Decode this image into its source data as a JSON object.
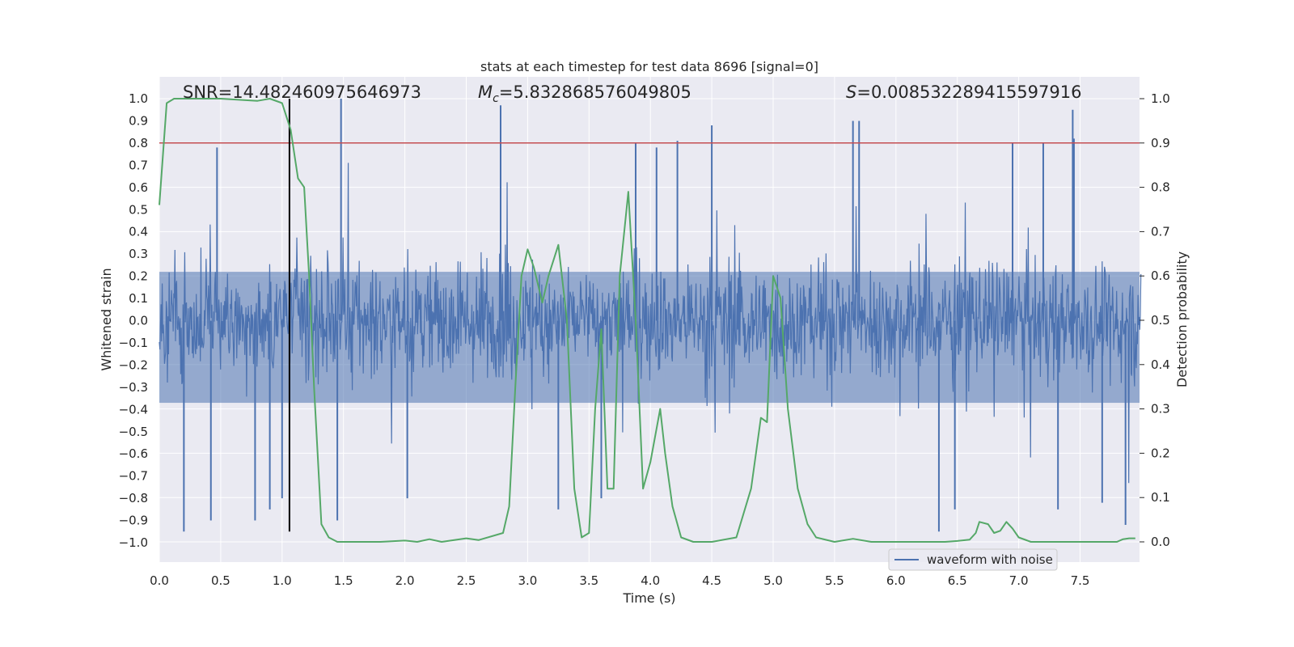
{
  "chart_data": {
    "type": "line",
    "title": "stats at each timestep for test data 8696 [signal=0]",
    "xlabel": "Time (s)",
    "ylabel": "Whitened strain",
    "y2label": "Detection probability",
    "xlim": [
      0.0,
      8.0
    ],
    "ylim": [
      -1.1,
      1.1
    ],
    "y2lim": [
      -0.05,
      1.05
    ],
    "xticks": [
      "0.0",
      "0.5",
      "1.0",
      "1.5",
      "2.0",
      "2.5",
      "3.0",
      "3.5",
      "4.0",
      "4.5",
      "5.0",
      "5.5",
      "6.0",
      "6.5",
      "7.0",
      "7.5"
    ],
    "yticks": [
      "1.0",
      "0.9",
      "0.8",
      "0.7",
      "0.6",
      "0.5",
      "0.4",
      "0.3",
      "0.2",
      "0.1",
      "0.0",
      "-0.1",
      "-0.2",
      "-0.3",
      "-0.4",
      "-0.5",
      "-0.6",
      "-0.7",
      "-0.8",
      "-0.9",
      "-1.0"
    ],
    "y2ticks": [
      "1.0",
      "0.9",
      "0.8",
      "0.7",
      "0.6",
      "0.5",
      "0.4",
      "0.3",
      "0.2",
      "0.1",
      "0.0"
    ],
    "annotations": {
      "snr": "SNR=14.482460975646973",
      "mc_symbol": "M",
      "mc_sub": "c",
      "mc_value": "=5.832868576049805",
      "s_symbol": "S",
      "s_value": "=0.008532289415597916"
    },
    "threshold": {
      "name": "detection threshold",
      "value": 0.9,
      "axis": "y2",
      "color": "#c44e52"
    },
    "marker_time": {
      "name": "event marker",
      "value": 1.06,
      "color": "#000000"
    },
    "legend": {
      "label": "waveform with noise",
      "location": "lower-right"
    },
    "series": [
      {
        "name": "waveform with noise",
        "axis": "y",
        "color": "#4c72b0",
        "style": "dense noise, |strain| mostly below 0.55, occasional spikes to about +/-0.95",
        "spikes": [
          {
            "t": 0.2,
            "v": -0.95
          },
          {
            "t": 0.42,
            "v": -0.9
          },
          {
            "t": 0.47,
            "v": 0.78
          },
          {
            "t": 0.78,
            "v": -0.9
          },
          {
            "t": 0.9,
            "v": -0.85
          },
          {
            "t": 1.0,
            "v": -0.8
          },
          {
            "t": 1.48,
            "v": 1.0
          },
          {
            "t": 1.45,
            "v": -0.9
          },
          {
            "t": 2.02,
            "v": -0.8
          },
          {
            "t": 2.78,
            "v": 0.97
          },
          {
            "t": 3.25,
            "v": -0.85
          },
          {
            "t": 3.6,
            "v": -0.8
          },
          {
            "t": 3.88,
            "v": 0.8
          },
          {
            "t": 4.05,
            "v": 0.78
          },
          {
            "t": 4.22,
            "v": 0.81
          },
          {
            "t": 4.5,
            "v": 0.88
          },
          {
            "t": 5.65,
            "v": 0.9
          },
          {
            "t": 5.7,
            "v": 0.9
          },
          {
            "t": 6.35,
            "v": -0.95
          },
          {
            "t": 6.48,
            "v": -0.85
          },
          {
            "t": 6.95,
            "v": 0.8
          },
          {
            "t": 7.2,
            "v": 0.8
          },
          {
            "t": 7.32,
            "v": -0.85
          },
          {
            "t": 7.44,
            "v": 0.95
          },
          {
            "t": 7.45,
            "v": 0.82
          },
          {
            "t": 7.68,
            "v": -0.82
          },
          {
            "t": 7.87,
            "v": -0.92
          }
        ]
      },
      {
        "name": "detection probability",
        "axis": "y2",
        "color": "#55a868",
        "x": [
          0.0,
          0.06,
          0.12,
          0.25,
          0.5,
          0.8,
          0.9,
          1.0,
          1.07,
          1.13,
          1.18,
          1.22,
          1.26,
          1.32,
          1.38,
          1.45,
          1.6,
          1.8,
          2.0,
          2.1,
          2.2,
          2.3,
          2.5,
          2.6,
          2.8,
          2.85,
          2.9,
          2.95,
          3.0,
          3.05,
          3.12,
          3.17,
          3.25,
          3.32,
          3.38,
          3.44,
          3.5,
          3.55,
          3.6,
          3.65,
          3.7,
          3.75,
          3.82,
          3.88,
          3.94,
          4.0,
          4.08,
          4.12,
          4.18,
          4.25,
          4.35,
          4.5,
          4.7,
          4.82,
          4.9,
          4.95,
          5.0,
          5.06,
          5.12,
          5.2,
          5.28,
          5.35,
          5.5,
          5.65,
          5.8,
          6.0,
          6.2,
          6.4,
          6.5,
          6.6,
          6.65,
          6.68,
          6.75,
          6.8,
          6.85,
          6.9,
          6.95,
          7.0,
          7.1,
          7.3,
          7.6,
          7.8,
          7.85,
          7.9,
          7.95
        ],
        "y": [
          0.76,
          0.99,
          1.0,
          1.0,
          1.0,
          0.995,
          1.0,
          0.99,
          0.93,
          0.82,
          0.8,
          0.6,
          0.35,
          0.04,
          0.01,
          0.0,
          0.0,
          0.0,
          0.003,
          0.0,
          0.006,
          0.0,
          0.008,
          0.004,
          0.02,
          0.08,
          0.35,
          0.6,
          0.66,
          0.62,
          0.54,
          0.6,
          0.67,
          0.5,
          0.12,
          0.01,
          0.02,
          0.3,
          0.48,
          0.12,
          0.12,
          0.6,
          0.79,
          0.5,
          0.12,
          0.18,
          0.3,
          0.2,
          0.08,
          0.01,
          0.0,
          0.0,
          0.01,
          0.12,
          0.28,
          0.27,
          0.6,
          0.55,
          0.3,
          0.12,
          0.04,
          0.01,
          0.0,
          0.007,
          0.0,
          0.0,
          0.0,
          0.0,
          0.002,
          0.005,
          0.02,
          0.045,
          0.04,
          0.02,
          0.025,
          0.045,
          0.03,
          0.01,
          0.0,
          0.0,
          0.0,
          0.0,
          0.006,
          0.008,
          0.008
        ]
      }
    ]
  }
}
